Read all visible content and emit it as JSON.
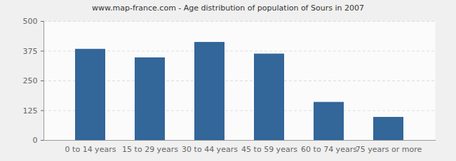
{
  "chart_data": {
    "type": "bar",
    "title": "www.map-france.com - Age distribution of population of Sours in 2007",
    "categories": [
      "0 to 14 years",
      "15 to 29 years",
      "30 to 44 years",
      "45 to 59 years",
      "60 to 74 years",
      "75 years or more"
    ],
    "values": [
      383,
      347,
      412,
      363,
      160,
      97
    ],
    "color": "#336699",
    "ylim": [
      0,
      500
    ],
    "yticks": [
      0,
      125,
      250,
      375,
      500
    ],
    "grid": true
  }
}
